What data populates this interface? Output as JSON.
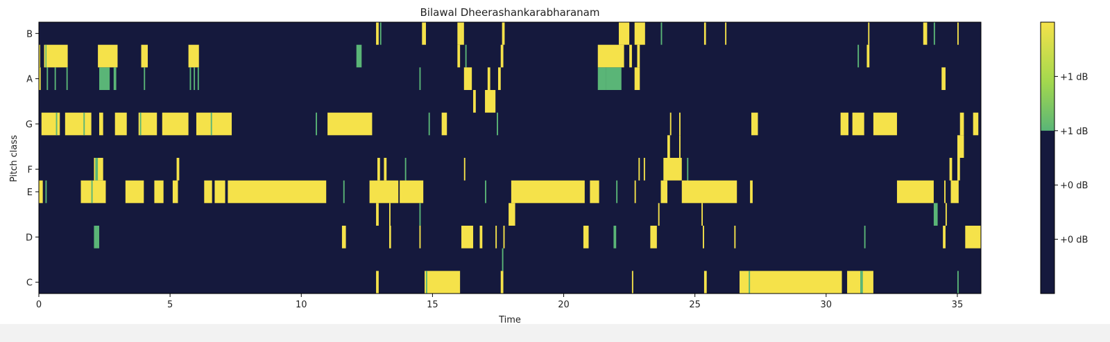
{
  "chart_data": {
    "type": "heatmap",
    "title": "Bilawal Dheerashankarabharanam",
    "xlabel": "Time",
    "ylabel": "Pitch class",
    "xlim": [
      0,
      35.9
    ],
    "x_ticks": [
      0,
      5,
      10,
      15,
      20,
      25,
      30,
      35
    ],
    "y_categories": [
      "C",
      "D",
      "E",
      "F",
      "G",
      "A",
      "B"
    ],
    "y_ticks": [
      {
        "label": "C",
        "value": 0.5
      },
      {
        "label": "D",
        "value": 2.5
      },
      {
        "label": "E",
        "value": 4.5
      },
      {
        "label": "F",
        "value": 5.5
      },
      {
        "label": "G",
        "value": 7.5
      },
      {
        "label": "A",
        "value": 9.5
      },
      {
        "label": "B",
        "value": 11.5
      }
    ],
    "row_count": 12,
    "background_color": "#15193d",
    "colors": {
      "high": "#f5e24a",
      "mid": "#5ab577",
      "low": "#15193d",
      "light": "#a3d84e"
    },
    "colorbar": {
      "tick_labels": [
        "+1 dB",
        "+1 dB",
        "+0 dB",
        "+0 dB"
      ],
      "tick_fractions": [
        0.8,
        0.6,
        0.4,
        0.2
      ],
      "gradient_fraction": 0.4
    },
    "segments": [
      {
        "row": 11,
        "start": 12.85,
        "end": 12.95,
        "level": "high"
      },
      {
        "row": 11,
        "start": 13.0,
        "end": 13.05,
        "level": "mid"
      },
      {
        "row": 11,
        "start": 14.6,
        "end": 14.75,
        "level": "high"
      },
      {
        "row": 11,
        "start": 15.95,
        "end": 16.1,
        "level": "high"
      },
      {
        "row": 11,
        "start": 16.1,
        "end": 16.2,
        "level": "high"
      },
      {
        "row": 11,
        "start": 17.65,
        "end": 17.75,
        "level": "high"
      },
      {
        "row": 11,
        "start": 22.1,
        "end": 22.5,
        "level": "high"
      },
      {
        "row": 11,
        "start": 22.7,
        "end": 23.1,
        "level": "high"
      },
      {
        "row": 11,
        "start": 23.7,
        "end": 23.75,
        "level": "mid"
      },
      {
        "row": 11,
        "start": 25.35,
        "end": 25.42,
        "level": "high"
      },
      {
        "row": 11,
        "start": 26.15,
        "end": 26.2,
        "level": "high"
      },
      {
        "row": 11,
        "start": 31.6,
        "end": 31.65,
        "level": "high"
      },
      {
        "row": 11,
        "start": 33.7,
        "end": 33.85,
        "level": "high"
      },
      {
        "row": 11,
        "start": 34.1,
        "end": 34.15,
        "level": "mid"
      },
      {
        "row": 11,
        "start": 35.0,
        "end": 35.05,
        "level": "high"
      },
      {
        "row": 10,
        "start": 0.0,
        "end": 0.05,
        "level": "high"
      },
      {
        "row": 10,
        "start": 0.2,
        "end": 1.1,
        "level": "high"
      },
      {
        "row": 10,
        "start": 0.25,
        "end": 0.28,
        "level": "mid"
      },
      {
        "row": 10,
        "start": 2.25,
        "end": 3.0,
        "level": "high"
      },
      {
        "row": 10,
        "start": 3.9,
        "end": 4.15,
        "level": "high"
      },
      {
        "row": 10,
        "start": 5.7,
        "end": 6.1,
        "level": "high"
      },
      {
        "row": 10,
        "start": 12.1,
        "end": 12.3,
        "level": "mid"
      },
      {
        "row": 10,
        "start": 15.95,
        "end": 16.05,
        "level": "high"
      },
      {
        "row": 10,
        "start": 16.25,
        "end": 16.3,
        "level": "mid"
      },
      {
        "row": 10,
        "start": 17.6,
        "end": 17.7,
        "level": "high"
      },
      {
        "row": 10,
        "start": 21.3,
        "end": 22.3,
        "level": "high"
      },
      {
        "row": 10,
        "start": 22.5,
        "end": 22.6,
        "level": "high"
      },
      {
        "row": 10,
        "start": 22.8,
        "end": 22.9,
        "level": "high"
      },
      {
        "row": 10,
        "start": 31.2,
        "end": 31.25,
        "level": "mid"
      },
      {
        "row": 10,
        "start": 31.55,
        "end": 31.65,
        "level": "high"
      },
      {
        "row": 9,
        "start": 0.0,
        "end": 0.07,
        "level": "high"
      },
      {
        "row": 9,
        "start": 0.3,
        "end": 0.35,
        "level": "mid"
      },
      {
        "row": 9,
        "start": 0.6,
        "end": 0.65,
        "level": "mid"
      },
      {
        "row": 9,
        "start": 1.05,
        "end": 1.1,
        "level": "mid"
      },
      {
        "row": 9,
        "start": 2.3,
        "end": 2.7,
        "level": "mid"
      },
      {
        "row": 9,
        "start": 2.85,
        "end": 2.95,
        "level": "mid"
      },
      {
        "row": 9,
        "start": 4.0,
        "end": 4.05,
        "level": "mid"
      },
      {
        "row": 9,
        "start": 5.75,
        "end": 5.8,
        "level": "mid"
      },
      {
        "row": 9,
        "start": 5.9,
        "end": 5.95,
        "level": "mid"
      },
      {
        "row": 9,
        "start": 6.05,
        "end": 6.1,
        "level": "mid"
      },
      {
        "row": 9,
        "start": 14.5,
        "end": 14.55,
        "level": "mid"
      },
      {
        "row": 9,
        "start": 16.2,
        "end": 16.5,
        "level": "high"
      },
      {
        "row": 9,
        "start": 17.1,
        "end": 17.2,
        "level": "high"
      },
      {
        "row": 9,
        "start": 17.5,
        "end": 17.6,
        "level": "high"
      },
      {
        "row": 9,
        "start": 21.3,
        "end": 21.6,
        "level": "mid"
      },
      {
        "row": 9,
        "start": 21.6,
        "end": 22.2,
        "level": "mid"
      },
      {
        "row": 9,
        "start": 22.7,
        "end": 22.9,
        "level": "high"
      },
      {
        "row": 9,
        "start": 34.4,
        "end": 34.55,
        "level": "high"
      },
      {
        "row": 8,
        "start": 16.55,
        "end": 16.65,
        "level": "high"
      },
      {
        "row": 8,
        "start": 17.0,
        "end": 17.4,
        "level": "high"
      },
      {
        "row": 7,
        "start": 0.1,
        "end": 0.8,
        "level": "high"
      },
      {
        "row": 7,
        "start": 0.65,
        "end": 0.7,
        "level": "mid"
      },
      {
        "row": 7,
        "start": 1.0,
        "end": 2.0,
        "level": "high"
      },
      {
        "row": 7,
        "start": 1.7,
        "end": 1.75,
        "level": "mid"
      },
      {
        "row": 7,
        "start": 2.3,
        "end": 2.45,
        "level": "high"
      },
      {
        "row": 7,
        "start": 2.9,
        "end": 3.35,
        "level": "high"
      },
      {
        "row": 7,
        "start": 3.8,
        "end": 4.5,
        "level": "high"
      },
      {
        "row": 7,
        "start": 3.85,
        "end": 3.9,
        "level": "mid"
      },
      {
        "row": 7,
        "start": 4.7,
        "end": 5.7,
        "level": "high"
      },
      {
        "row": 7,
        "start": 6.0,
        "end": 7.35,
        "level": "high"
      },
      {
        "row": 7,
        "start": 6.55,
        "end": 6.6,
        "level": "mid"
      },
      {
        "row": 7,
        "start": 10.55,
        "end": 10.6,
        "level": "mid"
      },
      {
        "row": 7,
        "start": 11.0,
        "end": 12.7,
        "level": "high"
      },
      {
        "row": 7,
        "start": 14.85,
        "end": 14.9,
        "level": "mid"
      },
      {
        "row": 7,
        "start": 15.35,
        "end": 15.55,
        "level": "high"
      },
      {
        "row": 7,
        "start": 17.45,
        "end": 17.5,
        "level": "mid"
      },
      {
        "row": 7,
        "start": 24.05,
        "end": 24.1,
        "level": "high"
      },
      {
        "row": 7,
        "start": 24.4,
        "end": 24.45,
        "level": "high"
      },
      {
        "row": 7,
        "start": 27.15,
        "end": 27.4,
        "level": "high"
      },
      {
        "row": 7,
        "start": 30.55,
        "end": 30.85,
        "level": "high"
      },
      {
        "row": 7,
        "start": 31.0,
        "end": 31.45,
        "level": "high"
      },
      {
        "row": 7,
        "start": 31.8,
        "end": 32.7,
        "level": "high"
      },
      {
        "row": 7,
        "start": 35.1,
        "end": 35.25,
        "level": "high"
      },
      {
        "row": 7,
        "start": 35.6,
        "end": 35.8,
        "level": "high"
      },
      {
        "row": 6,
        "start": 23.95,
        "end": 24.05,
        "level": "high"
      },
      {
        "row": 6,
        "start": 24.4,
        "end": 24.45,
        "level": "high"
      },
      {
        "row": 6,
        "start": 35.0,
        "end": 35.25,
        "level": "high"
      },
      {
        "row": 5,
        "start": 2.1,
        "end": 2.45,
        "level": "high"
      },
      {
        "row": 5,
        "start": 2.15,
        "end": 2.25,
        "level": "mid"
      },
      {
        "row": 5,
        "start": 5.25,
        "end": 5.35,
        "level": "high"
      },
      {
        "row": 5,
        "start": 12.9,
        "end": 13.0,
        "level": "high"
      },
      {
        "row": 5,
        "start": 13.15,
        "end": 13.25,
        "level": "high"
      },
      {
        "row": 5,
        "start": 13.95,
        "end": 14.0,
        "level": "mid"
      },
      {
        "row": 5,
        "start": 16.2,
        "end": 16.25,
        "level": "high"
      },
      {
        "row": 5,
        "start": 22.85,
        "end": 22.9,
        "level": "high"
      },
      {
        "row": 5,
        "start": 23.05,
        "end": 23.1,
        "level": "high"
      },
      {
        "row": 5,
        "start": 23.8,
        "end": 24.5,
        "level": "high"
      },
      {
        "row": 5,
        "start": 24.7,
        "end": 24.75,
        "level": "mid"
      },
      {
        "row": 5,
        "start": 34.7,
        "end": 34.8,
        "level": "high"
      },
      {
        "row": 5,
        "start": 35.0,
        "end": 35.1,
        "level": "high"
      },
      {
        "row": 4,
        "start": 0.0,
        "end": 0.15,
        "level": "high"
      },
      {
        "row": 4,
        "start": 0.25,
        "end": 0.3,
        "level": "mid"
      },
      {
        "row": 4,
        "start": 1.6,
        "end": 2.55,
        "level": "high"
      },
      {
        "row": 4,
        "start": 2.0,
        "end": 2.05,
        "level": "mid"
      },
      {
        "row": 4,
        "start": 3.3,
        "end": 4.0,
        "level": "high"
      },
      {
        "row": 4,
        "start": 4.4,
        "end": 4.75,
        "level": "high"
      },
      {
        "row": 4,
        "start": 5.1,
        "end": 5.3,
        "level": "high"
      },
      {
        "row": 4,
        "start": 6.3,
        "end": 6.6,
        "level": "high"
      },
      {
        "row": 4,
        "start": 6.7,
        "end": 7.1,
        "level": "high"
      },
      {
        "row": 4,
        "start": 7.2,
        "end": 10.95,
        "level": "high"
      },
      {
        "row": 4,
        "start": 11.6,
        "end": 11.65,
        "level": "mid"
      },
      {
        "row": 4,
        "start": 12.6,
        "end": 13.7,
        "level": "high"
      },
      {
        "row": 4,
        "start": 13.75,
        "end": 14.65,
        "level": "high"
      },
      {
        "row": 4,
        "start": 17.0,
        "end": 17.05,
        "level": "mid"
      },
      {
        "row": 4,
        "start": 18.0,
        "end": 20.8,
        "level": "high"
      },
      {
        "row": 4,
        "start": 21.0,
        "end": 21.35,
        "level": "high"
      },
      {
        "row": 4,
        "start": 22.0,
        "end": 22.05,
        "level": "mid"
      },
      {
        "row": 4,
        "start": 22.7,
        "end": 22.75,
        "level": "high"
      },
      {
        "row": 4,
        "start": 23.7,
        "end": 23.95,
        "level": "high"
      },
      {
        "row": 4,
        "start": 24.5,
        "end": 26.6,
        "level": "high"
      },
      {
        "row": 4,
        "start": 27.1,
        "end": 27.2,
        "level": "high"
      },
      {
        "row": 4,
        "start": 32.7,
        "end": 34.1,
        "level": "high"
      },
      {
        "row": 4,
        "start": 34.5,
        "end": 34.55,
        "level": "high"
      },
      {
        "row": 4,
        "start": 34.75,
        "end": 35.05,
        "level": "high"
      },
      {
        "row": 3,
        "start": 12.85,
        "end": 12.95,
        "level": "high"
      },
      {
        "row": 3,
        "start": 13.35,
        "end": 13.4,
        "level": "high"
      },
      {
        "row": 3,
        "start": 14.5,
        "end": 14.55,
        "level": "mid"
      },
      {
        "row": 3,
        "start": 17.9,
        "end": 18.15,
        "level": "high"
      },
      {
        "row": 3,
        "start": 23.6,
        "end": 23.65,
        "level": "high"
      },
      {
        "row": 3,
        "start": 25.25,
        "end": 25.3,
        "level": "high"
      },
      {
        "row": 3,
        "start": 34.1,
        "end": 34.25,
        "level": "mid"
      },
      {
        "row": 3,
        "start": 34.55,
        "end": 34.6,
        "level": "high"
      },
      {
        "row": 2,
        "start": 2.1,
        "end": 2.3,
        "level": "mid"
      },
      {
        "row": 2,
        "start": 11.55,
        "end": 11.7,
        "level": "high"
      },
      {
        "row": 2,
        "start": 13.35,
        "end": 13.42,
        "level": "high"
      },
      {
        "row": 2,
        "start": 14.5,
        "end": 14.55,
        "level": "high"
      },
      {
        "row": 2,
        "start": 16.1,
        "end": 16.55,
        "level": "high"
      },
      {
        "row": 2,
        "start": 16.8,
        "end": 16.9,
        "level": "high"
      },
      {
        "row": 2,
        "start": 17.4,
        "end": 17.45,
        "level": "high"
      },
      {
        "row": 2,
        "start": 17.7,
        "end": 17.75,
        "level": "high"
      },
      {
        "row": 2,
        "start": 20.75,
        "end": 20.95,
        "level": "high"
      },
      {
        "row": 2,
        "start": 21.9,
        "end": 22.0,
        "level": "mid"
      },
      {
        "row": 2,
        "start": 23.3,
        "end": 23.55,
        "level": "high"
      },
      {
        "row": 2,
        "start": 25.3,
        "end": 25.35,
        "level": "high"
      },
      {
        "row": 2,
        "start": 26.5,
        "end": 26.55,
        "level": "high"
      },
      {
        "row": 2,
        "start": 31.45,
        "end": 31.5,
        "level": "mid"
      },
      {
        "row": 2,
        "start": 34.45,
        "end": 34.55,
        "level": "high"
      },
      {
        "row": 2,
        "start": 35.3,
        "end": 35.9,
        "level": "high"
      },
      {
        "row": 1,
        "start": 17.65,
        "end": 17.7,
        "level": "mid"
      },
      {
        "row": 0,
        "start": 12.85,
        "end": 12.95,
        "level": "high"
      },
      {
        "row": 0,
        "start": 14.7,
        "end": 16.05,
        "level": "high"
      },
      {
        "row": 0,
        "start": 14.75,
        "end": 14.8,
        "level": "mid"
      },
      {
        "row": 0,
        "start": 17.6,
        "end": 17.7,
        "level": "high"
      },
      {
        "row": 0,
        "start": 22.6,
        "end": 22.65,
        "level": "high"
      },
      {
        "row": 0,
        "start": 25.35,
        "end": 25.45,
        "level": "high"
      },
      {
        "row": 0,
        "start": 26.7,
        "end": 30.6,
        "level": "high"
      },
      {
        "row": 0,
        "start": 27.05,
        "end": 27.1,
        "level": "mid"
      },
      {
        "row": 0,
        "start": 30.8,
        "end": 31.8,
        "level": "high"
      },
      {
        "row": 0,
        "start": 31.3,
        "end": 31.4,
        "level": "mid"
      },
      {
        "row": 0,
        "start": 35.0,
        "end": 35.05,
        "level": "mid"
      }
    ]
  }
}
